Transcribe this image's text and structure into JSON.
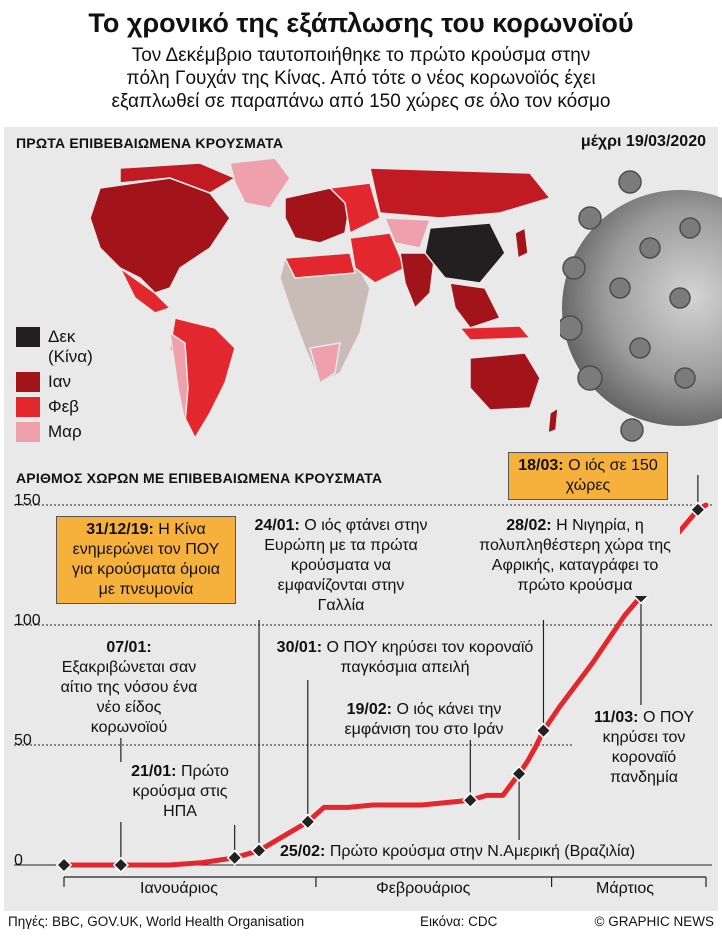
{
  "header": {
    "title": "Το χρονικό της εξάπλωσης του κορωνοϊού",
    "subtitle_lines": [
      "Τον Δεκέμβριο ταυτοποιήθηκε το πρώτο κρούσμα στην",
      "πόλη Γουχάν της Κίνας. Από τότε ο νέος κορωνοϊός έχει",
      "εξαπλωθεί σε παραπάνω από 150 χώρες σε όλο τον κόσμο"
    ]
  },
  "map": {
    "heading": "ΠΡΩΤΑ ΕΠΙΒΕΒΑΙΩΜΕΝΑ ΚΡΟΥΣΜΑΤΑ",
    "date": "μέχρι 19/03/2020",
    "legend": [
      {
        "label": "Δεκ (Κίνα)",
        "color": "#231f20"
      },
      {
        "label": "Ιαν",
        "color": "#a3131a"
      },
      {
        "label": "Φεβ",
        "color": "#e3272e"
      },
      {
        "label": "Μαρ",
        "color": "#eea0ad"
      }
    ],
    "no_data_color": "#c9bcb6"
  },
  "chart_data": {
    "type": "line",
    "title": "ΑΡΙΘΜΟΣ ΧΩΡΩΝ ΜΕ ΕΠΙΒΕΒΑΙΩΜΕΝΑ ΚΡΟΥΣΜΑΤΑ",
    "x_axis_months": [
      "Ιανουάριος",
      "Φεβρουάριος",
      "Μάρτιος"
    ],
    "ylim": [
      0,
      150
    ],
    "yticks": [
      0,
      50,
      100,
      150
    ],
    "line_color": "#e3272e",
    "series": [
      {
        "x": [
          "2019-12-31",
          "2020-01-07",
          "2020-01-13",
          "2020-01-17",
          "2020-01-21",
          "2020-01-24",
          "2020-01-27",
          "2020-01-29",
          "2020-01-30",
          "2020-02-01",
          "2020-02-04",
          "2020-02-07",
          "2020-02-10",
          "2020-02-13",
          "2020-02-16",
          "2020-02-19",
          "2020-02-21",
          "2020-02-23",
          "2020-02-25",
          "2020-02-26",
          "2020-02-27",
          "2020-02-28",
          "2020-03-01",
          "2020-03-03",
          "2020-03-05",
          "2020-03-07",
          "2020-03-09",
          "2020-03-11",
          "2020-03-13",
          "2020-03-15",
          "2020-03-17",
          "2020-03-18",
          "2020-03-19"
        ],
        "y": [
          0,
          0,
          0,
          1,
          3,
          6,
          12,
          16,
          18,
          24,
          24,
          25,
          25,
          25,
          26,
          27,
          29,
          29,
          38,
          43,
          49,
          56,
          66,
          75,
          84,
          94,
          104,
          112,
          123,
          136,
          144,
          148,
          150
        ]
      }
    ],
    "annotations": [
      {
        "date": "31/12/19:",
        "text": "Η Κίνα ενημερώνει τον ΠΟΥ για κρούσματα όμοια με πνευμονία",
        "x": "2019-12-31",
        "y": 0,
        "highlight": true
      },
      {
        "date": "07/01:",
        "text": "Εξακριβώνεται σαν αίτιο της νόσου ένα νέο είδος κορωνοϊού",
        "x": "2020-01-07",
        "y": 0
      },
      {
        "date": "21/01:",
        "text": "Πρώτο κρούσμα στις ΗΠΑ",
        "x": "2020-01-21",
        "y": 3
      },
      {
        "date": "24/01:",
        "text": "Ο ιός φτάνει στην Ευρώπη με τα πρώτα κρούσματα να εμφανίζονται στην Γαλλία",
        "x": "2020-01-24",
        "y": 6
      },
      {
        "date": "30/01:",
        "text": "Ο ΠΟΥ κηρύσει τον κοροναϊό παγκόσμια απειλή",
        "x": "2020-01-30",
        "y": 18
      },
      {
        "date": "19/02:",
        "text": "Ο ιός κάνει την εμφάνιση του στο Ιράν",
        "x": "2020-02-19",
        "y": 27
      },
      {
        "date": "25/02:",
        "text": "Πρώτο κρούσμα στην Ν.Αμερική (Βραζιλία)",
        "x": "2020-02-25",
        "y": 38
      },
      {
        "date": "28/02:",
        "text": "Η Νιγηρία, η πολυπληθέστερη χώρα της Αφρικής, καταγράφει το πρώτο κρούσμα",
        "x": "2020-02-28",
        "y": 56
      },
      {
        "date": "11/03:",
        "text": "Ο ΠΟΥ κηρύσει τον κοροναϊό πανδημία",
        "x": "2020-03-11",
        "y": 112
      },
      {
        "date": "18/03:",
        "text": "Ο ιός σε 150 χώρες",
        "x": "2020-03-18",
        "y": 148,
        "highlight": true
      }
    ]
  },
  "footer": {
    "sources": "Πηγές: BBC, GOV.UK, World Health Organisation",
    "image_credit": "Εικόνα: CDC",
    "copyright": "© GRAPHIC NEWS"
  }
}
